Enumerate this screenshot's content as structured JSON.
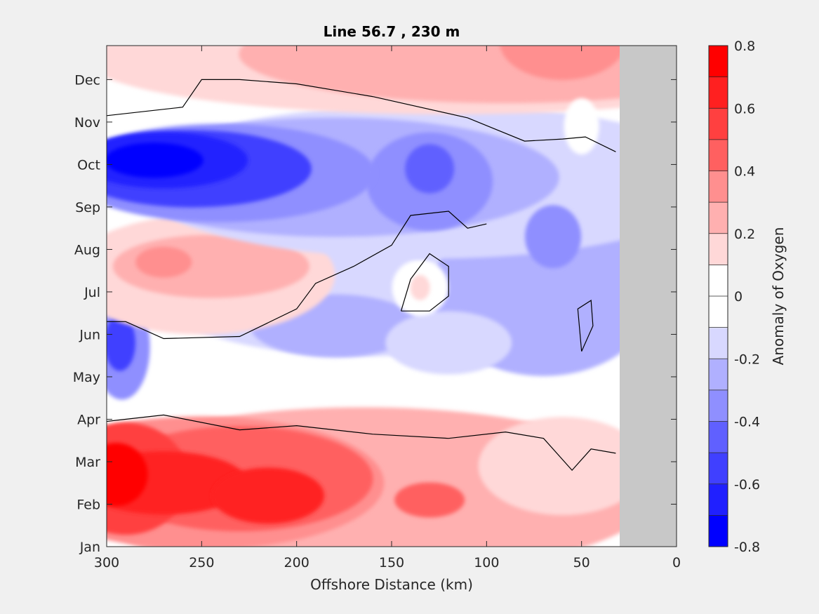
{
  "chart_data": {
    "type": "heatmap",
    "subtype": "filled-contour",
    "title": "Line 56.7 , 230 m",
    "xlabel": "Offshore Distance (km)",
    "ylabel": "",
    "xlim": [
      300,
      0
    ],
    "x_reversed": true,
    "x_ticks": [
      "300",
      "250",
      "200",
      "150",
      "100",
      "50",
      "0"
    ],
    "y_ticks": [
      "Jan",
      "Feb",
      "Mar",
      "Apr",
      "May",
      "Jun",
      "Jul",
      "Aug",
      "Sep",
      "Oct",
      "Nov",
      "Dec"
    ],
    "colorbar": {
      "label": "Anomaly of Oxygen",
      "clim": [
        -0.8,
        0.8
      ],
      "tick_labels": [
        "0.8",
        "0.6",
        "0.4",
        "0.2",
        "0",
        "-0.2",
        "-0.4",
        "-0.6",
        "-0.8"
      ],
      "levels": [
        {
          "range": [
            -0.8,
            -0.7
          ],
          "color": "#0000ff"
        },
        {
          "range": [
            -0.7,
            -0.6
          ],
          "color": "#2020ff"
        },
        {
          "range": [
            -0.6,
            -0.5
          ],
          "color": "#4040ff"
        },
        {
          "range": [
            -0.5,
            -0.4
          ],
          "color": "#6060ff"
        },
        {
          "range": [
            -0.4,
            -0.3
          ],
          "color": "#8f8fff"
        },
        {
          "range": [
            -0.3,
            -0.2
          ],
          "color": "#b0b0ff"
        },
        {
          "range": [
            -0.2,
            -0.1
          ],
          "color": "#d8d8ff"
        },
        {
          "range": [
            -0.1,
            0.0
          ],
          "color": "#ffffff"
        },
        {
          "range": [
            0.0,
            0.1
          ],
          "color": "#ffffff"
        },
        {
          "range": [
            0.1,
            0.2
          ],
          "color": "#ffd8d8"
        },
        {
          "range": [
            0.2,
            0.3
          ],
          "color": "#ffb0b0"
        },
        {
          "range": [
            0.3,
            0.4
          ],
          "color": "#ff8f8f"
        },
        {
          "range": [
            0.4,
            0.5
          ],
          "color": "#ff6060"
        },
        {
          "range": [
            0.5,
            0.6
          ],
          "color": "#ff4040"
        },
        {
          "range": [
            0.6,
            0.7
          ],
          "color": "#ff2020"
        },
        {
          "range": [
            0.7,
            0.8
          ],
          "color": "#ff0000"
        }
      ]
    },
    "no_data_region": {
      "x_range_km": [
        30,
        0
      ],
      "color": "#c8c8c8"
    },
    "zero_contour_color": "#000000",
    "features": [
      {
        "name": "spring-positive-anomaly",
        "months": "Jan-Mar",
        "x_range_km": [
          300,
          30
        ],
        "peak_value": 0.8,
        "peak_location_km": 295
      },
      {
        "name": "autumn-negative-anomaly",
        "months": "Aug-Oct",
        "x_range_km": [
          300,
          150
        ],
        "peak_value": -0.8,
        "peak_location_km": 275
      },
      {
        "name": "june-july-positive-anomaly",
        "months": "Jun-Jul",
        "x_range_km": [
          300,
          200
        ],
        "peak_value": 0.3
      },
      {
        "name": "may-negative-anomaly",
        "months": "May",
        "x_range_km": [
          300,
          285
        ],
        "peak_value": -0.6
      },
      {
        "name": "winter-positive-anomaly",
        "months": "Nov-Dec",
        "x_range_km": [
          260,
          30
        ],
        "peak_value": 0.3
      }
    ]
  }
}
